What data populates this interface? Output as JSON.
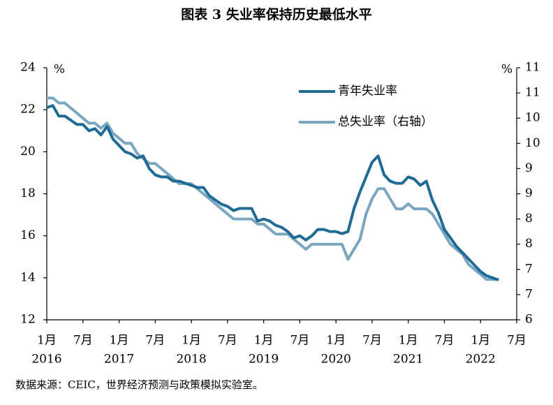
{
  "chart_data": {
    "type": "line",
    "title": "图表 3 失业率保持历史最低水平",
    "source": "数据来源：CEIC，世界经济预测与政策模拟实验室。",
    "y_unit": "%",
    "y2_unit": "%",
    "x": [
      "2016-01",
      "2016-02",
      "2016-03",
      "2016-04",
      "2016-05",
      "2016-06",
      "2016-07",
      "2016-08",
      "2016-09",
      "2016-10",
      "2016-11",
      "2016-12",
      "2017-01",
      "2017-02",
      "2017-03",
      "2017-04",
      "2017-05",
      "2017-06",
      "2017-07",
      "2017-08",
      "2017-09",
      "2017-10",
      "2017-11",
      "2017-12",
      "2018-01",
      "2018-02",
      "2018-03",
      "2018-04",
      "2018-05",
      "2018-06",
      "2018-07",
      "2018-08",
      "2018-09",
      "2018-10",
      "2018-11",
      "2018-12",
      "2019-01",
      "2019-02",
      "2019-03",
      "2019-04",
      "2019-05",
      "2019-06",
      "2019-07",
      "2019-08",
      "2019-09",
      "2019-10",
      "2019-11",
      "2019-12",
      "2020-01",
      "2020-02",
      "2020-03",
      "2020-04",
      "2020-05",
      "2020-06",
      "2020-07",
      "2020-08",
      "2020-09",
      "2020-10",
      "2020-11",
      "2020-12",
      "2021-01",
      "2021-02",
      "2021-03",
      "2021-04",
      "2021-05",
      "2021-06",
      "2021-07",
      "2021-08",
      "2021-09",
      "2021-10",
      "2021-11",
      "2021-12",
      "2022-01",
      "2022-02",
      "2022-03",
      "2022-04"
    ],
    "xlim": [
      "2016-01",
      "2022-07"
    ],
    "xticks": [
      {
        "value": "2016-01",
        "label": "1月"
      },
      {
        "value": "2016-07",
        "label": "7月"
      },
      {
        "value": "2017-01",
        "label": "1月"
      },
      {
        "value": "2017-07",
        "label": "7月"
      },
      {
        "value": "2018-01",
        "label": "1月"
      },
      {
        "value": "2018-07",
        "label": "7月"
      },
      {
        "value": "2019-01",
        "label": "1月"
      },
      {
        "value": "2019-07",
        "label": "7月"
      },
      {
        "value": "2020-01",
        "label": "1月"
      },
      {
        "value": "2020-07",
        "label": "7月"
      },
      {
        "value": "2021-01",
        "label": "1月"
      },
      {
        "value": "2021-07",
        "label": "7月"
      },
      {
        "value": "2022-01",
        "label": "1月"
      },
      {
        "value": "2022-07",
        "label": "7月"
      }
    ],
    "year_labels": [
      {
        "value": "2016-01",
        "label": "2016"
      },
      {
        "value": "2017-01",
        "label": "2017"
      },
      {
        "value": "2018-01",
        "label": "2018"
      },
      {
        "value": "2019-01",
        "label": "2019"
      },
      {
        "value": "2020-01",
        "label": "2020"
      },
      {
        "value": "2021-01",
        "label": "2021"
      },
      {
        "value": "2022-01",
        "label": "2022"
      }
    ],
    "ylim": [
      12,
      24
    ],
    "yticks": [
      12,
      14,
      16,
      18,
      20,
      22,
      24
    ],
    "y2lim": [
      6,
      11
    ],
    "y2ticks": [
      6,
      {
        "value": 6.5,
        "label": "7"
      },
      7,
      {
        "value": 7.5,
        "label": "8"
      },
      8,
      {
        "value": 8.5,
        "label": "9"
      },
      9,
      {
        "value": 9.5,
        "label": "10"
      },
      10,
      {
        "value": 10.5,
        "label": "11"
      },
      11
    ],
    "legend": "upper right",
    "series": [
      {
        "name": "青年失业率",
        "color": "#1f6b94",
        "values": [
          22.1,
          22.2,
          21.7,
          21.7,
          21.5,
          21.3,
          21.3,
          21.0,
          21.1,
          20.8,
          21.2,
          20.6,
          20.3,
          20.0,
          19.9,
          19.7,
          19.8,
          19.2,
          18.9,
          18.8,
          18.8,
          18.6,
          18.6,
          18.5,
          18.4,
          18.3,
          18.3,
          17.9,
          17.7,
          17.5,
          17.4,
          17.2,
          17.3,
          17.3,
          17.3,
          16.7,
          16.8,
          16.7,
          16.5,
          16.4,
          16.2,
          15.9,
          16.0,
          15.8,
          16.0,
          16.3,
          16.3,
          16.2,
          16.2,
          16.1,
          16.2,
          17.3,
          18.1,
          18.8,
          19.5,
          19.8,
          18.9,
          18.6,
          18.5,
          18.5,
          18.8,
          18.7,
          18.4,
          18.6,
          17.7,
          17.1,
          16.3,
          15.9,
          15.5,
          15.2,
          14.9,
          14.6,
          14.3,
          14.1,
          14.0,
          13.9
        ]
      },
      {
        "name": "总失业率（右轴）",
        "color": "#7ba6c0",
        "axis": "y2",
        "values": [
          10.4,
          10.4,
          10.3,
          10.3,
          10.2,
          10.1,
          10.0,
          9.9,
          9.9,
          9.8,
          9.9,
          9.7,
          9.6,
          9.5,
          9.5,
          9.3,
          9.2,
          9.1,
          9.1,
          9.0,
          8.9,
          8.8,
          8.7,
          8.7,
          8.7,
          8.6,
          8.5,
          8.4,
          8.3,
          8.2,
          8.1,
          8.0,
          8.0,
          8.0,
          8.0,
          7.9,
          7.9,
          7.8,
          7.7,
          7.7,
          7.7,
          7.6,
          7.5,
          7.4,
          7.5,
          7.5,
          7.5,
          7.5,
          7.5,
          7.5,
          7.2,
          7.4,
          7.6,
          8.1,
          8.4,
          8.6,
          8.6,
          8.4,
          8.2,
          8.2,
          8.3,
          8.2,
          8.2,
          8.2,
          8.1,
          7.9,
          7.7,
          7.5,
          7.4,
          7.3,
          7.1,
          7.0,
          6.9,
          6.8,
          6.8,
          6.8
        ]
      }
    ]
  }
}
